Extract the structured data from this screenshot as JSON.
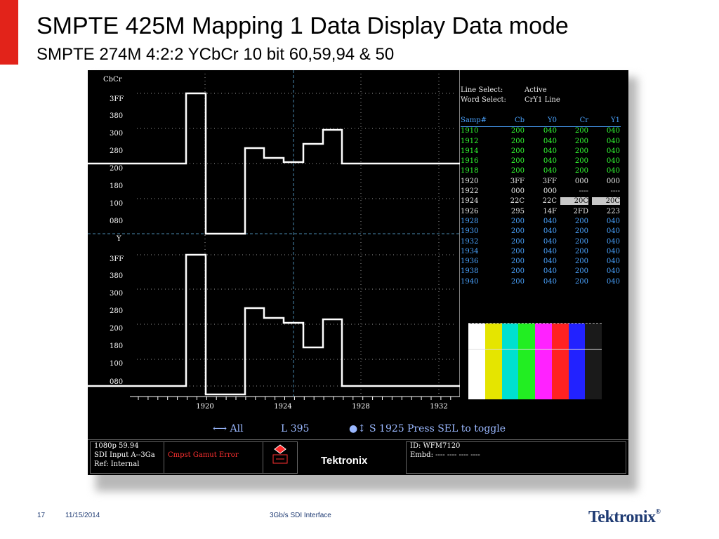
{
  "slide": {
    "title": "SMPTE 425M Mapping 1 Data Display Data mode",
    "subtitle": "SMPTE 274M 4:2:2 YCbCr 10 bit 60,59,94 & 50"
  },
  "waveform": {
    "cbcr_label": "CbCr",
    "y_label": "Y",
    "cbcr_ticks": [
      "3FF",
      "380",
      "300",
      "280",
      "200",
      "180",
      "100",
      "080"
    ],
    "y_ticks": [
      "3FF",
      "380",
      "300",
      "280",
      "200",
      "180",
      "100",
      "080"
    ],
    "x_ticks": [
      "1920",
      "1924",
      "1928",
      "1932"
    ],
    "trace_color": "#ffffff"
  },
  "info": {
    "line_select_label": "Line Select:",
    "line_select_value": "Active",
    "word_select_label": "Word Select:",
    "word_select_value": "CrY1 Line"
  },
  "table": {
    "headers": [
      "Samp#",
      "Cb",
      "Y0",
      "Cr",
      "Y1"
    ],
    "rows": [
      {
        "samp": "1910",
        "cb": "200",
        "y0": "040",
        "cr": "200",
        "y1": "040",
        "color": "#33ff33"
      },
      {
        "samp": "1912",
        "cb": "200",
        "y0": "040",
        "cr": "200",
        "y1": "040",
        "color": "#33ff33"
      },
      {
        "samp": "1914",
        "cb": "200",
        "y0": "040",
        "cr": "200",
        "y1": "040",
        "color": "#33ff33"
      },
      {
        "samp": "1916",
        "cb": "200",
        "y0": "040",
        "cr": "200",
        "y1": "040",
        "color": "#33ff33"
      },
      {
        "samp": "1918",
        "cb": "200",
        "y0": "040",
        "cr": "200",
        "y1": "040",
        "color": "#33ff33"
      },
      {
        "samp": "1920",
        "cb": "3FF",
        "y0": "3FF",
        "cr": "000",
        "y1": "000",
        "color": "#e8e8e8"
      },
      {
        "samp": "1922",
        "cb": "000",
        "y0": "000",
        "cr": "----",
        "y1": "----",
        "color": "#e8e8e8"
      },
      {
        "samp": "1924",
        "cb": "22C",
        "y0": "22C",
        "cr": "20C",
        "y1": "20C",
        "color": "#e8e8e8"
      },
      {
        "samp": "1926",
        "cb": "295",
        "y0": "14F",
        "cr": "2FD",
        "y1": "223",
        "color": "#e8e8e8"
      },
      {
        "samp": "1928",
        "cb": "200",
        "y0": "040",
        "cr": "200",
        "y1": "040",
        "color": "#4aa3ff"
      },
      {
        "samp": "1930",
        "cb": "200",
        "y0": "040",
        "cr": "200",
        "y1": "040",
        "color": "#4aa3ff"
      },
      {
        "samp": "1932",
        "cb": "200",
        "y0": "040",
        "cr": "200",
        "y1": "040",
        "color": "#4aa3ff"
      },
      {
        "samp": "1934",
        "cb": "200",
        "y0": "040",
        "cr": "200",
        "y1": "040",
        "color": "#4aa3ff"
      },
      {
        "samp": "1936",
        "cb": "200",
        "y0": "040",
        "cr": "200",
        "y1": "040",
        "color": "#4aa3ff"
      },
      {
        "samp": "1938",
        "cb": "200",
        "y0": "040",
        "cr": "200",
        "y1": "040",
        "color": "#4aa3ff"
      },
      {
        "samp": "1940",
        "cb": "200",
        "y0": "040",
        "cr": "200",
        "y1": "040",
        "color": "#4aa3ff"
      }
    ]
  },
  "color_bars": [
    "#ffffff",
    "#e5e500",
    "#00e0d0",
    "#22ee22",
    "#ff22ff",
    "#ff2222",
    "#2222ff",
    "#1a1a1a"
  ],
  "status": {
    "all": "All",
    "line": "L 395",
    "sample": "S 1925",
    "press": "Press SEL to toggle"
  },
  "bottom": {
    "format": "1080p 59.94",
    "input": "SDI Input A--3Ga",
    "ref": "Ref: Internal",
    "error": "Cmpst Gamut Error",
    "brand": "Tektronix",
    "id": "ID: WFM7120",
    "embd": "Embd: ---- ---- ---- ----"
  },
  "footer": {
    "page": "17",
    "date": "11/15/2014",
    "center": "3Gb/s SDI Interface",
    "logo": "Tektronix",
    "logo_mark": "®"
  }
}
